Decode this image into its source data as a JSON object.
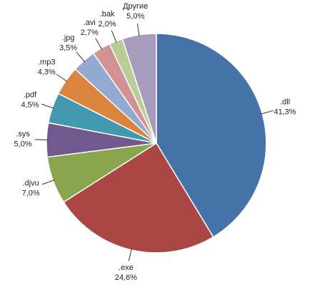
{
  "chart_data": {
    "type": "pie",
    "categories": [
      ".dll",
      ".exe",
      ".djvu",
      ".sys",
      ".pdf",
      ".mp3",
      ".jpg",
      ".avi",
      ".bak",
      "Другие"
    ],
    "values": [
      41.3,
      24.6,
      7.0,
      5.0,
      4.5,
      4.3,
      3.5,
      2.7,
      2.0,
      5.0
    ],
    "value_labels": [
      "41,3%",
      "24,6%",
      "7,0%",
      "5,0%",
      "4,5%",
      "4,3%",
      "3,5%",
      "2,7%",
      "2,0%",
      "5,0%"
    ],
    "colors": [
      "#4572a7",
      "#aa4643",
      "#89a54e",
      "#71588f",
      "#4198af",
      "#db843d",
      "#93a9cf",
      "#d19392",
      "#b9cd96",
      "#a99bbd"
    ]
  }
}
